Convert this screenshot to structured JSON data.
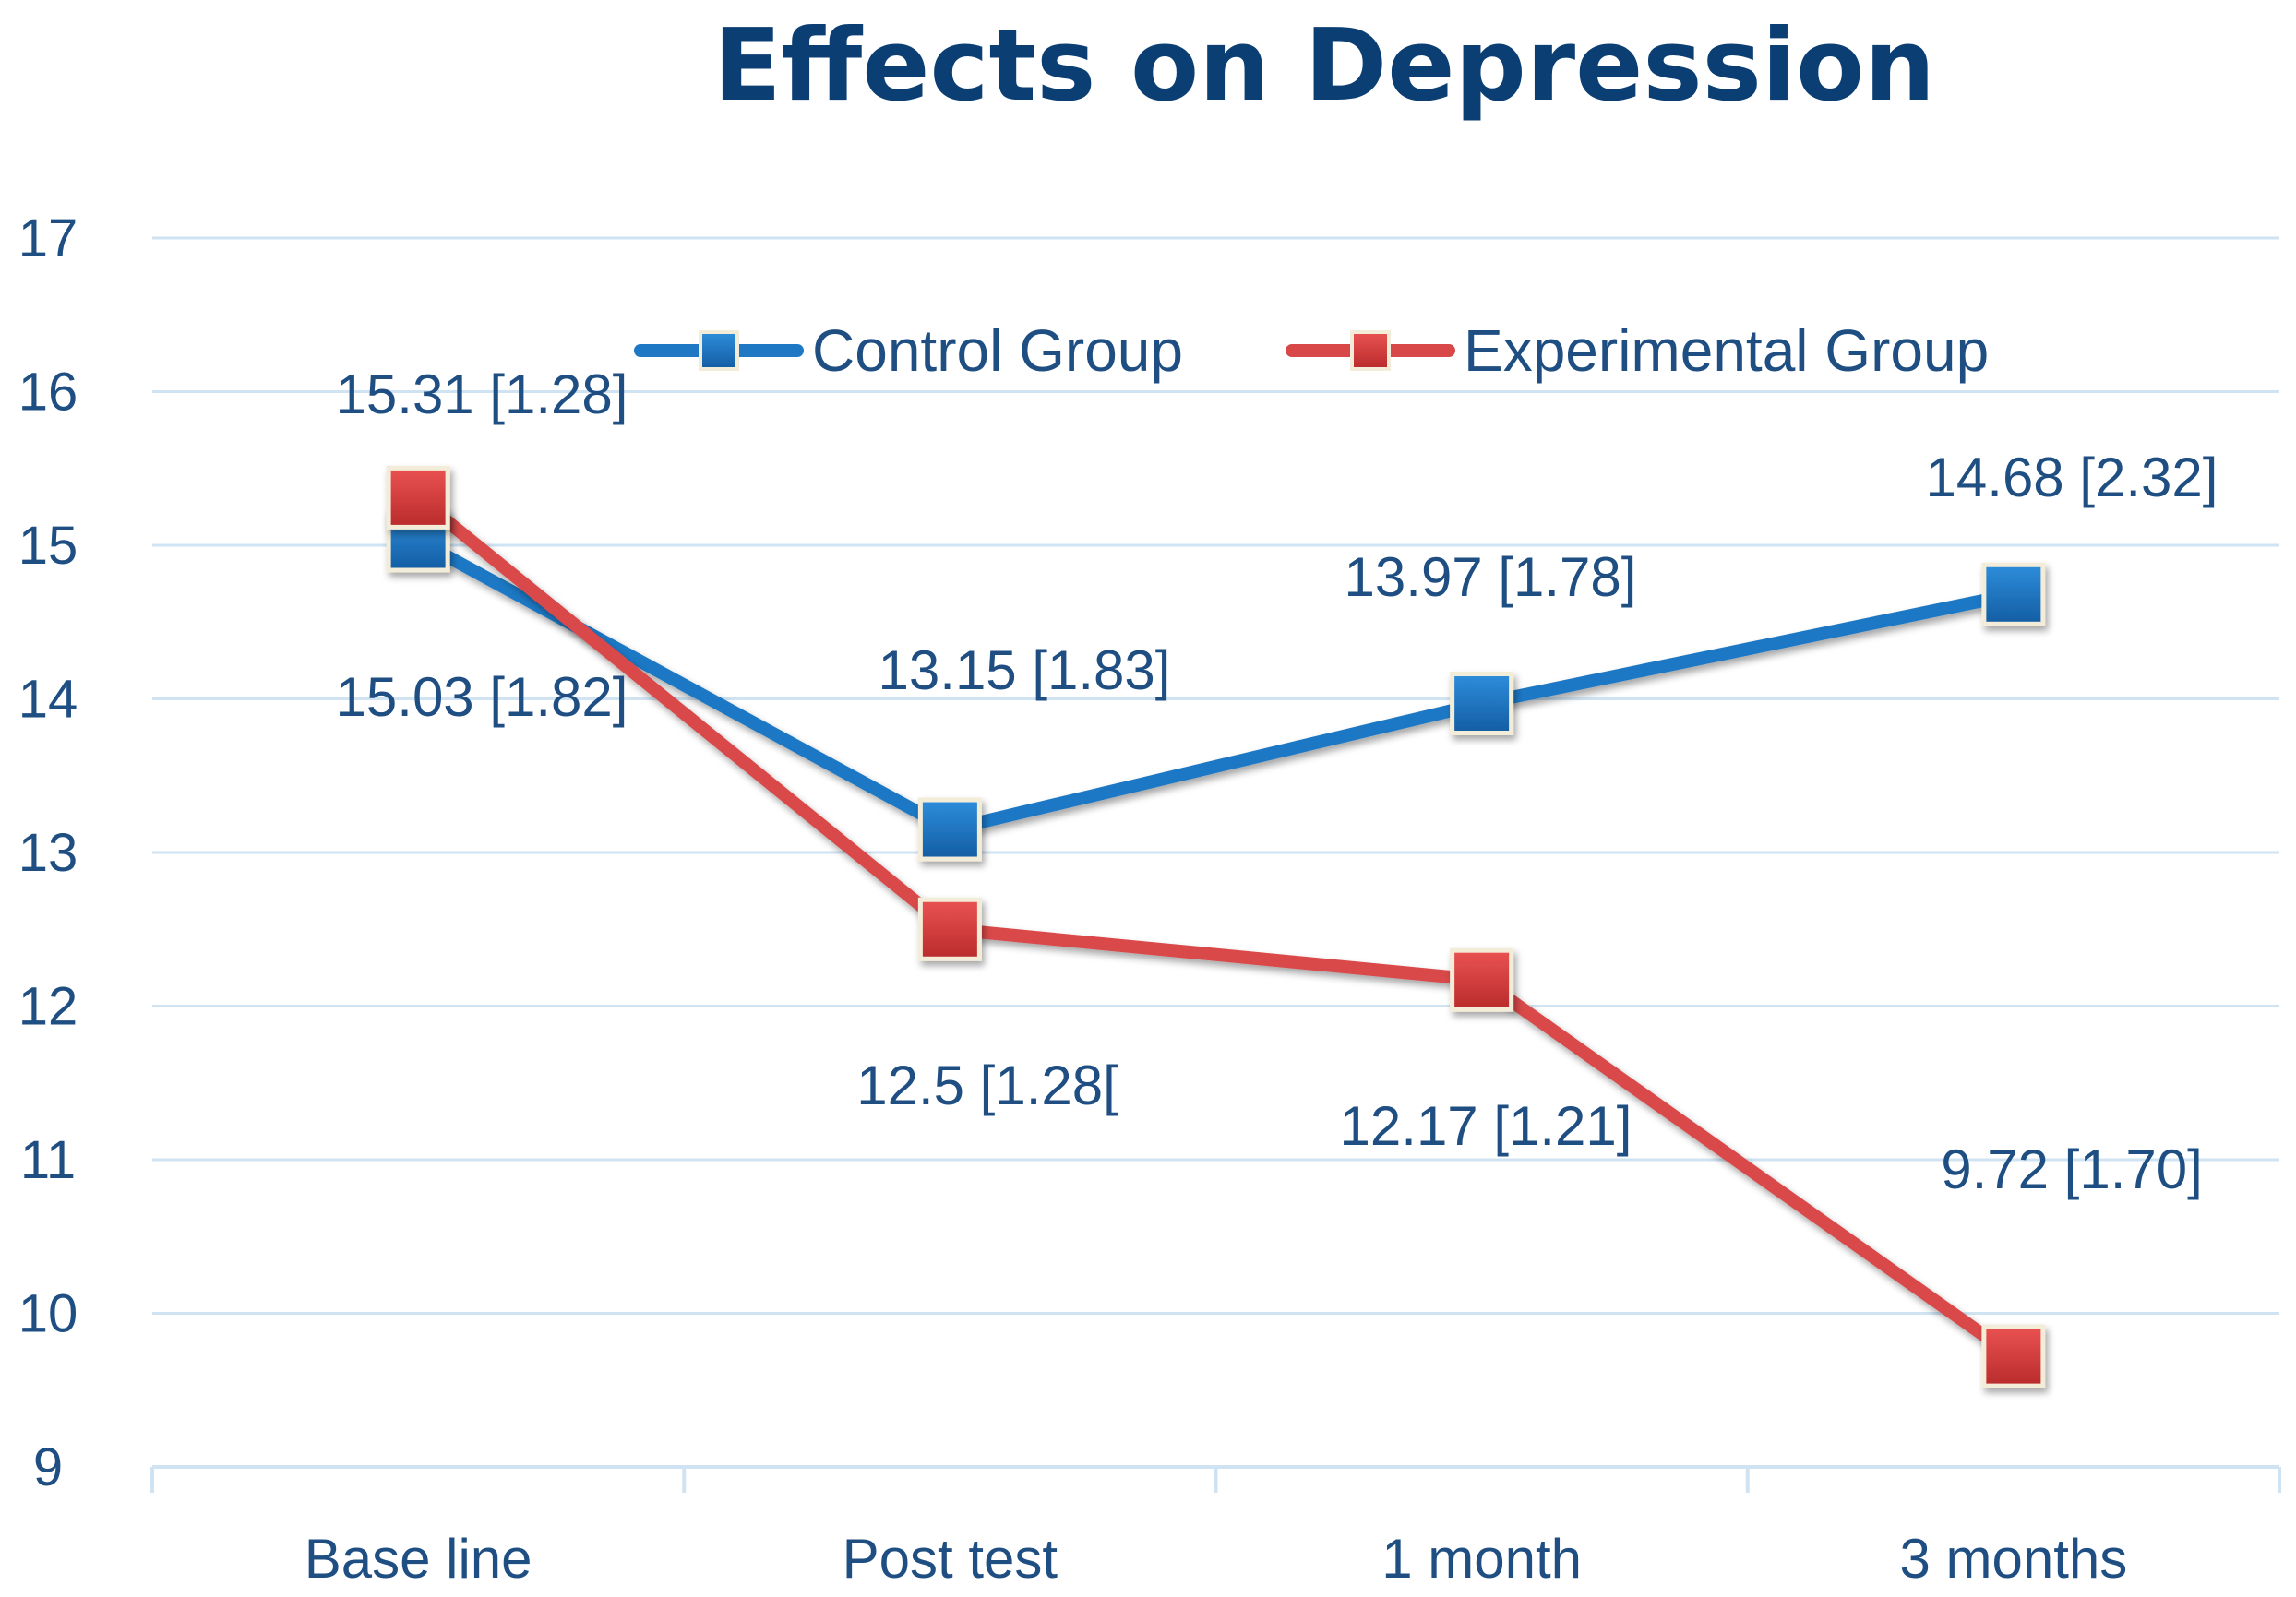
{
  "chart_data": {
    "type": "line",
    "title": "Effects on Depression",
    "xlabel": "",
    "ylabel": "",
    "categories": [
      "Base line",
      "Post test",
      "1 month",
      "3 months"
    ],
    "ylim": [
      9,
      17
    ],
    "yticks": [
      9,
      10,
      11,
      12,
      13,
      14,
      15,
      16,
      17
    ],
    "grid": true,
    "legend_position": "top-center",
    "series": [
      {
        "name": "Control Group",
        "color": "#1f78c4",
        "values": [
          15.03,
          13.15,
          13.97,
          14.68
        ],
        "labels": [
          "15.03 [1.82]",
          "13.15 [1.83]",
          "13.97 [1.78]",
          "14.68 [2.32]"
        ]
      },
      {
        "name": "Experimental Group",
        "color": "#d94848",
        "values": [
          15.31,
          12.5,
          12.17,
          9.72
        ],
        "labels": [
          "15.31 [1.28]",
          "12.5 [1.28[",
          "12.17 [1.21]",
          "9.72 [1.70]"
        ]
      }
    ]
  }
}
